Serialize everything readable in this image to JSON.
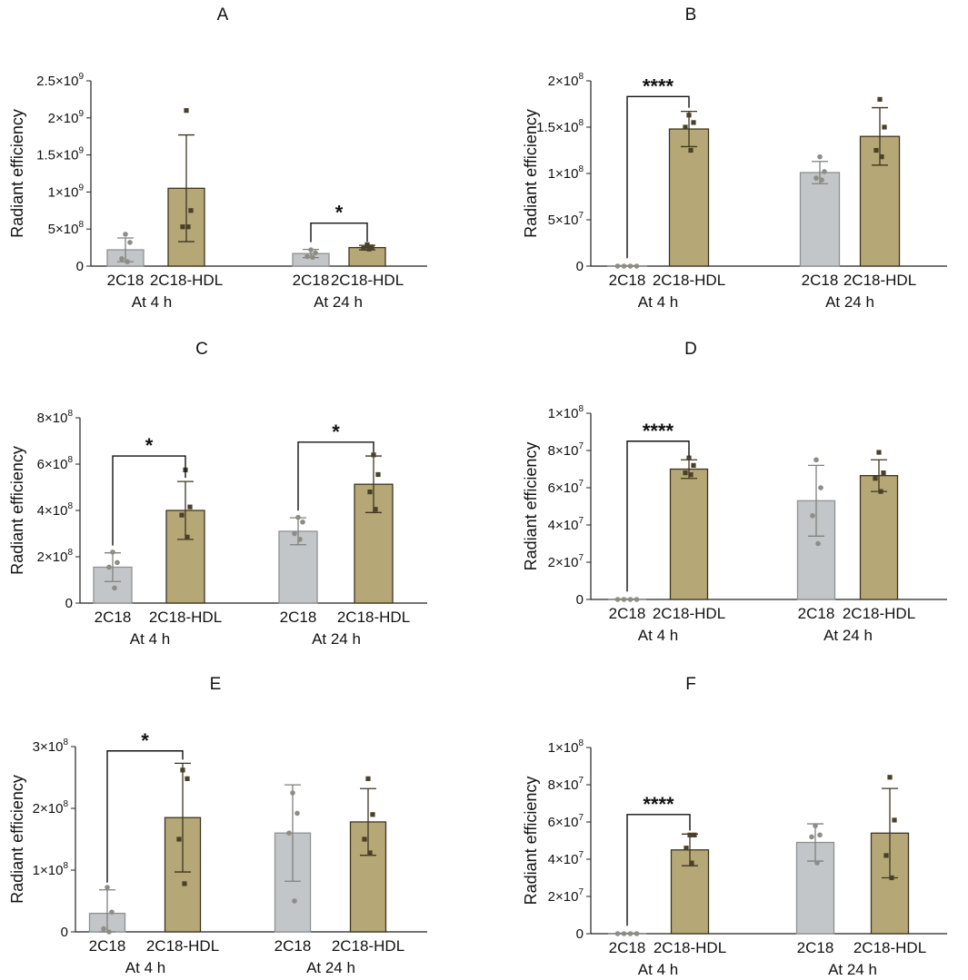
{
  "colors": {
    "bar_2c18": "#c2c6c8",
    "bar_2c18_stroke": "#8d9193",
    "bar_hdl": "#b5a876",
    "bar_hdl_stroke": "#3d3523",
    "err_2c18": "#7e817f",
    "err_hdl": "#3d3523",
    "pt_2c18": "#8e8c84",
    "pt_hdl": "#4a3f27",
    "axis": "#222222"
  },
  "chart_data": [
    {
      "panel": "A",
      "type": "bar",
      "title": "A",
      "ylabel": "Radiant efficiency",
      "ylim": [
        0,
        2500000000
      ],
      "yticks": [
        {
          "v": 0,
          "t": "0"
        },
        {
          "v": 500000000,
          "t": "5×10",
          "e": "8"
        },
        {
          "v": 1000000000,
          "t": "1×10",
          "e": "9"
        },
        {
          "v": 1500000000,
          "t": "1.5×10",
          "e": "9"
        },
        {
          "v": 2000000000,
          "t": "2×10",
          "e": "9"
        },
        {
          "v": 2500000000,
          "t": "2.5×10",
          "e": "9"
        }
      ],
      "groups": [
        {
          "label": "At 4 h",
          "bars": [
            {
              "name": "2C18",
              "mean": 220000000,
              "sd": 160000000,
              "points": [
                430000000,
                320000000,
                100000000,
                60000000
              ]
            },
            {
              "name": "2C18-HDL",
              "mean": 1050000000,
              "sd": 720000000,
              "points": [
                2100000000,
                750000000,
                530000000,
                530000000
              ]
            }
          ]
        },
        {
          "label": "At 24 h",
          "bars": [
            {
              "name": "2C18",
              "mean": 170000000,
              "sd": 55000000,
              "points": [
                220000000,
                180000000,
                130000000,
                120000000
              ]
            },
            {
              "name": "2C18-HDL",
              "mean": 250000000,
              "sd": 30000000,
              "points": [
                290000000,
                260000000,
                240000000,
                230000000
              ]
            }
          ]
        }
      ],
      "sig": [
        {
          "label": "*",
          "group": 1,
          "from": 0,
          "to": 1,
          "level": 580000000
        }
      ]
    },
    {
      "panel": "B",
      "type": "bar",
      "title": "B",
      "ylabel": "Radiant efficiency",
      "ylim": [
        0,
        200000000
      ],
      "yticks": [
        {
          "v": 0,
          "t": "0"
        },
        {
          "v": 50000000,
          "t": "5×10",
          "e": "7"
        },
        {
          "v": 100000000,
          "t": "1×10",
          "e": "8"
        },
        {
          "v": 150000000,
          "t": "1.5×10",
          "e": "8"
        },
        {
          "v": 200000000,
          "t": "2×10",
          "e": "8"
        }
      ],
      "groups": [
        {
          "label": "At 4 h",
          "bars": [
            {
              "name": "2C18",
              "mean": 300000,
              "sd": 300000,
              "points": [
                0,
                0,
                0,
                0
              ]
            },
            {
              "name": "2C18-HDL",
              "mean": 148000000,
              "sd": 19000000,
              "points": [
                163000000,
                155000000,
                150000000,
                125000000
              ]
            }
          ]
        },
        {
          "label": "At 24 h",
          "bars": [
            {
              "name": "2C18",
              "mean": 101000000,
              "sd": 12000000,
              "points": [
                118000000,
                102000000,
                95000000,
                93000000
              ]
            },
            {
              "name": "2C18-HDL",
              "mean": 140000000,
              "sd": 31000000,
              "points": [
                180000000,
                150000000,
                125000000,
                118000000
              ]
            }
          ]
        }
      ],
      "sig": [
        {
          "label": "****",
          "group": 0,
          "from": 0,
          "to": 1,
          "level": 183000000
        }
      ]
    },
    {
      "panel": "C",
      "type": "bar",
      "title": "C",
      "ylabel": "Radiant efficiency",
      "ylim": [
        0,
        800000000
      ],
      "yticks": [
        {
          "v": 0,
          "t": "0"
        },
        {
          "v": 200000000,
          "t": "2×10",
          "e": "8"
        },
        {
          "v": 400000000,
          "t": "4×10",
          "e": "8"
        },
        {
          "v": 600000000,
          "t": "6×10",
          "e": "8"
        },
        {
          "v": 800000000,
          "t": "8×10",
          "e": "8"
        }
      ],
      "groups": [
        {
          "label": "At 4 h",
          "bars": [
            {
              "name": "2C18",
              "mean": 155000000,
              "sd": 62000000,
              "points": [
                220000000,
                175000000,
                155000000,
                65000000
              ]
            },
            {
              "name": "2C18-HDL",
              "mean": 400000000,
              "sd": 125000000,
              "points": [
                575000000,
                415000000,
                380000000,
                285000000
              ]
            }
          ]
        },
        {
          "label": "At 24 h",
          "bars": [
            {
              "name": "2C18",
              "mean": 310000000,
              "sd": 58000000,
              "points": [
                370000000,
                350000000,
                300000000,
                275000000
              ]
            },
            {
              "name": "2C18-HDL",
              "mean": 513000000,
              "sd": 122000000,
              "points": [
                640000000,
                555000000,
                480000000,
                405000000
              ]
            }
          ]
        }
      ],
      "sig": [
        {
          "label": "*",
          "group": 0,
          "from": 0,
          "to": 1,
          "level": 635000000
        },
        {
          "label": "*",
          "group": 1,
          "from": 0,
          "to": 1,
          "level": 695000000
        }
      ]
    },
    {
      "panel": "D",
      "type": "bar",
      "title": "D",
      "ylabel": "Radiant efficiency",
      "ylim": [
        0,
        100000000
      ],
      "yticks": [
        {
          "v": 0,
          "t": "0"
        },
        {
          "v": 20000000,
          "t": "2×10",
          "e": "7"
        },
        {
          "v": 40000000,
          "t": "4×10",
          "e": "7"
        },
        {
          "v": 60000000,
          "t": "6×10",
          "e": "7"
        },
        {
          "v": 80000000,
          "t": "8×10",
          "e": "7"
        },
        {
          "v": 100000000,
          "t": "1×10",
          "e": "8"
        }
      ],
      "groups": [
        {
          "label": "At 4 h",
          "bars": [
            {
              "name": "2C18",
              "mean": 150000,
              "sd": 150000,
              "points": [
                0,
                0,
                0,
                0
              ]
            },
            {
              "name": "2C18-HDL",
              "mean": 70000000,
              "sd": 5000000,
              "points": [
                76000000,
                72000000,
                68000000,
                67000000
              ]
            }
          ]
        },
        {
          "label": "At 24 h",
          "bars": [
            {
              "name": "2C18",
              "mean": 53000000,
              "sd": 19000000,
              "points": [
                75000000,
                60000000,
                45000000,
                30000000
              ]
            },
            {
              "name": "2C18-HDL",
              "mean": 66500000,
              "sd": 8500000,
              "points": [
                79000000,
                68000000,
                65000000,
                58000000
              ]
            }
          ]
        }
      ],
      "sig": [
        {
          "label": "****",
          "group": 0,
          "from": 0,
          "to": 1,
          "level": 85000000
        }
      ]
    },
    {
      "panel": "E",
      "type": "bar",
      "title": "E",
      "ylabel": "Radiant efficiency",
      "ylim": [
        0,
        300000000
      ],
      "yticks": [
        {
          "v": 0,
          "t": "0"
        },
        {
          "v": 100000000,
          "t": "1×10",
          "e": "8"
        },
        {
          "v": 200000000,
          "t": "2×10",
          "e": "8"
        },
        {
          "v": 300000000,
          "t": "3×10",
          "e": "8"
        }
      ],
      "groups": [
        {
          "label": "At 4 h",
          "bars": [
            {
              "name": "2C18",
              "mean": 30000000,
              "sd": 38000000,
              "points": [
                72000000,
                32000000,
                5000000,
                0
              ]
            },
            {
              "name": "2C18-HDL",
              "mean": 185000000,
              "sd": 88000000,
              "points": [
                262000000,
                248000000,
                150000000,
                78000000
              ]
            }
          ]
        },
        {
          "label": "At 24 h",
          "bars": [
            {
              "name": "2C18",
              "mean": 160000000,
              "sd": 78000000,
              "points": [
                225000000,
                192000000,
                160000000,
                50000000
              ]
            },
            {
              "name": "2C18-HDL",
              "mean": 178000000,
              "sd": 54000000,
              "points": [
                248000000,
                190000000,
                150000000,
                128000000
              ]
            }
          ]
        }
      ],
      "sig": [
        {
          "label": "*",
          "group": 0,
          "from": 0,
          "to": 1,
          "level": 293000000
        }
      ]
    },
    {
      "panel": "F",
      "type": "bar",
      "title": "F",
      "ylabel": "Radiant efficiency",
      "ylim": [
        0,
        100000000
      ],
      "yticks": [
        {
          "v": 0,
          "t": "0"
        },
        {
          "v": 20000000,
          "t": "2×10",
          "e": "7"
        },
        {
          "v": 40000000,
          "t": "4×10",
          "e": "7"
        },
        {
          "v": 60000000,
          "t": "6×10",
          "e": "7"
        },
        {
          "v": 80000000,
          "t": "8×10",
          "e": "7"
        },
        {
          "v": 100000000,
          "t": "1×10",
          "e": "8"
        }
      ],
      "groups": [
        {
          "label": "At 4 h",
          "bars": [
            {
              "name": "2C18",
              "mean": 150000,
              "sd": 150000,
              "points": [
                0,
                0,
                0,
                0
              ]
            },
            {
              "name": "2C18-HDL",
              "mean": 45000000,
              "sd": 8500000,
              "points": [
                53000000,
                53000000,
                46000000,
                38000000
              ]
            }
          ]
        },
        {
          "label": "At 24 h",
          "bars": [
            {
              "name": "2C18",
              "mean": 49000000,
              "sd": 10000000,
              "points": [
                58000000,
                53000000,
                52000000,
                38000000
              ]
            },
            {
              "name": "2C18-HDL",
              "mean": 54000000,
              "sd": 24000000,
              "points": [
                84000000,
                61000000,
                42000000,
                30000000
              ]
            }
          ]
        }
      ],
      "sig": [
        {
          "label": "****",
          "group": 0,
          "from": 0,
          "to": 1,
          "level": 64000000
        }
      ]
    }
  ]
}
